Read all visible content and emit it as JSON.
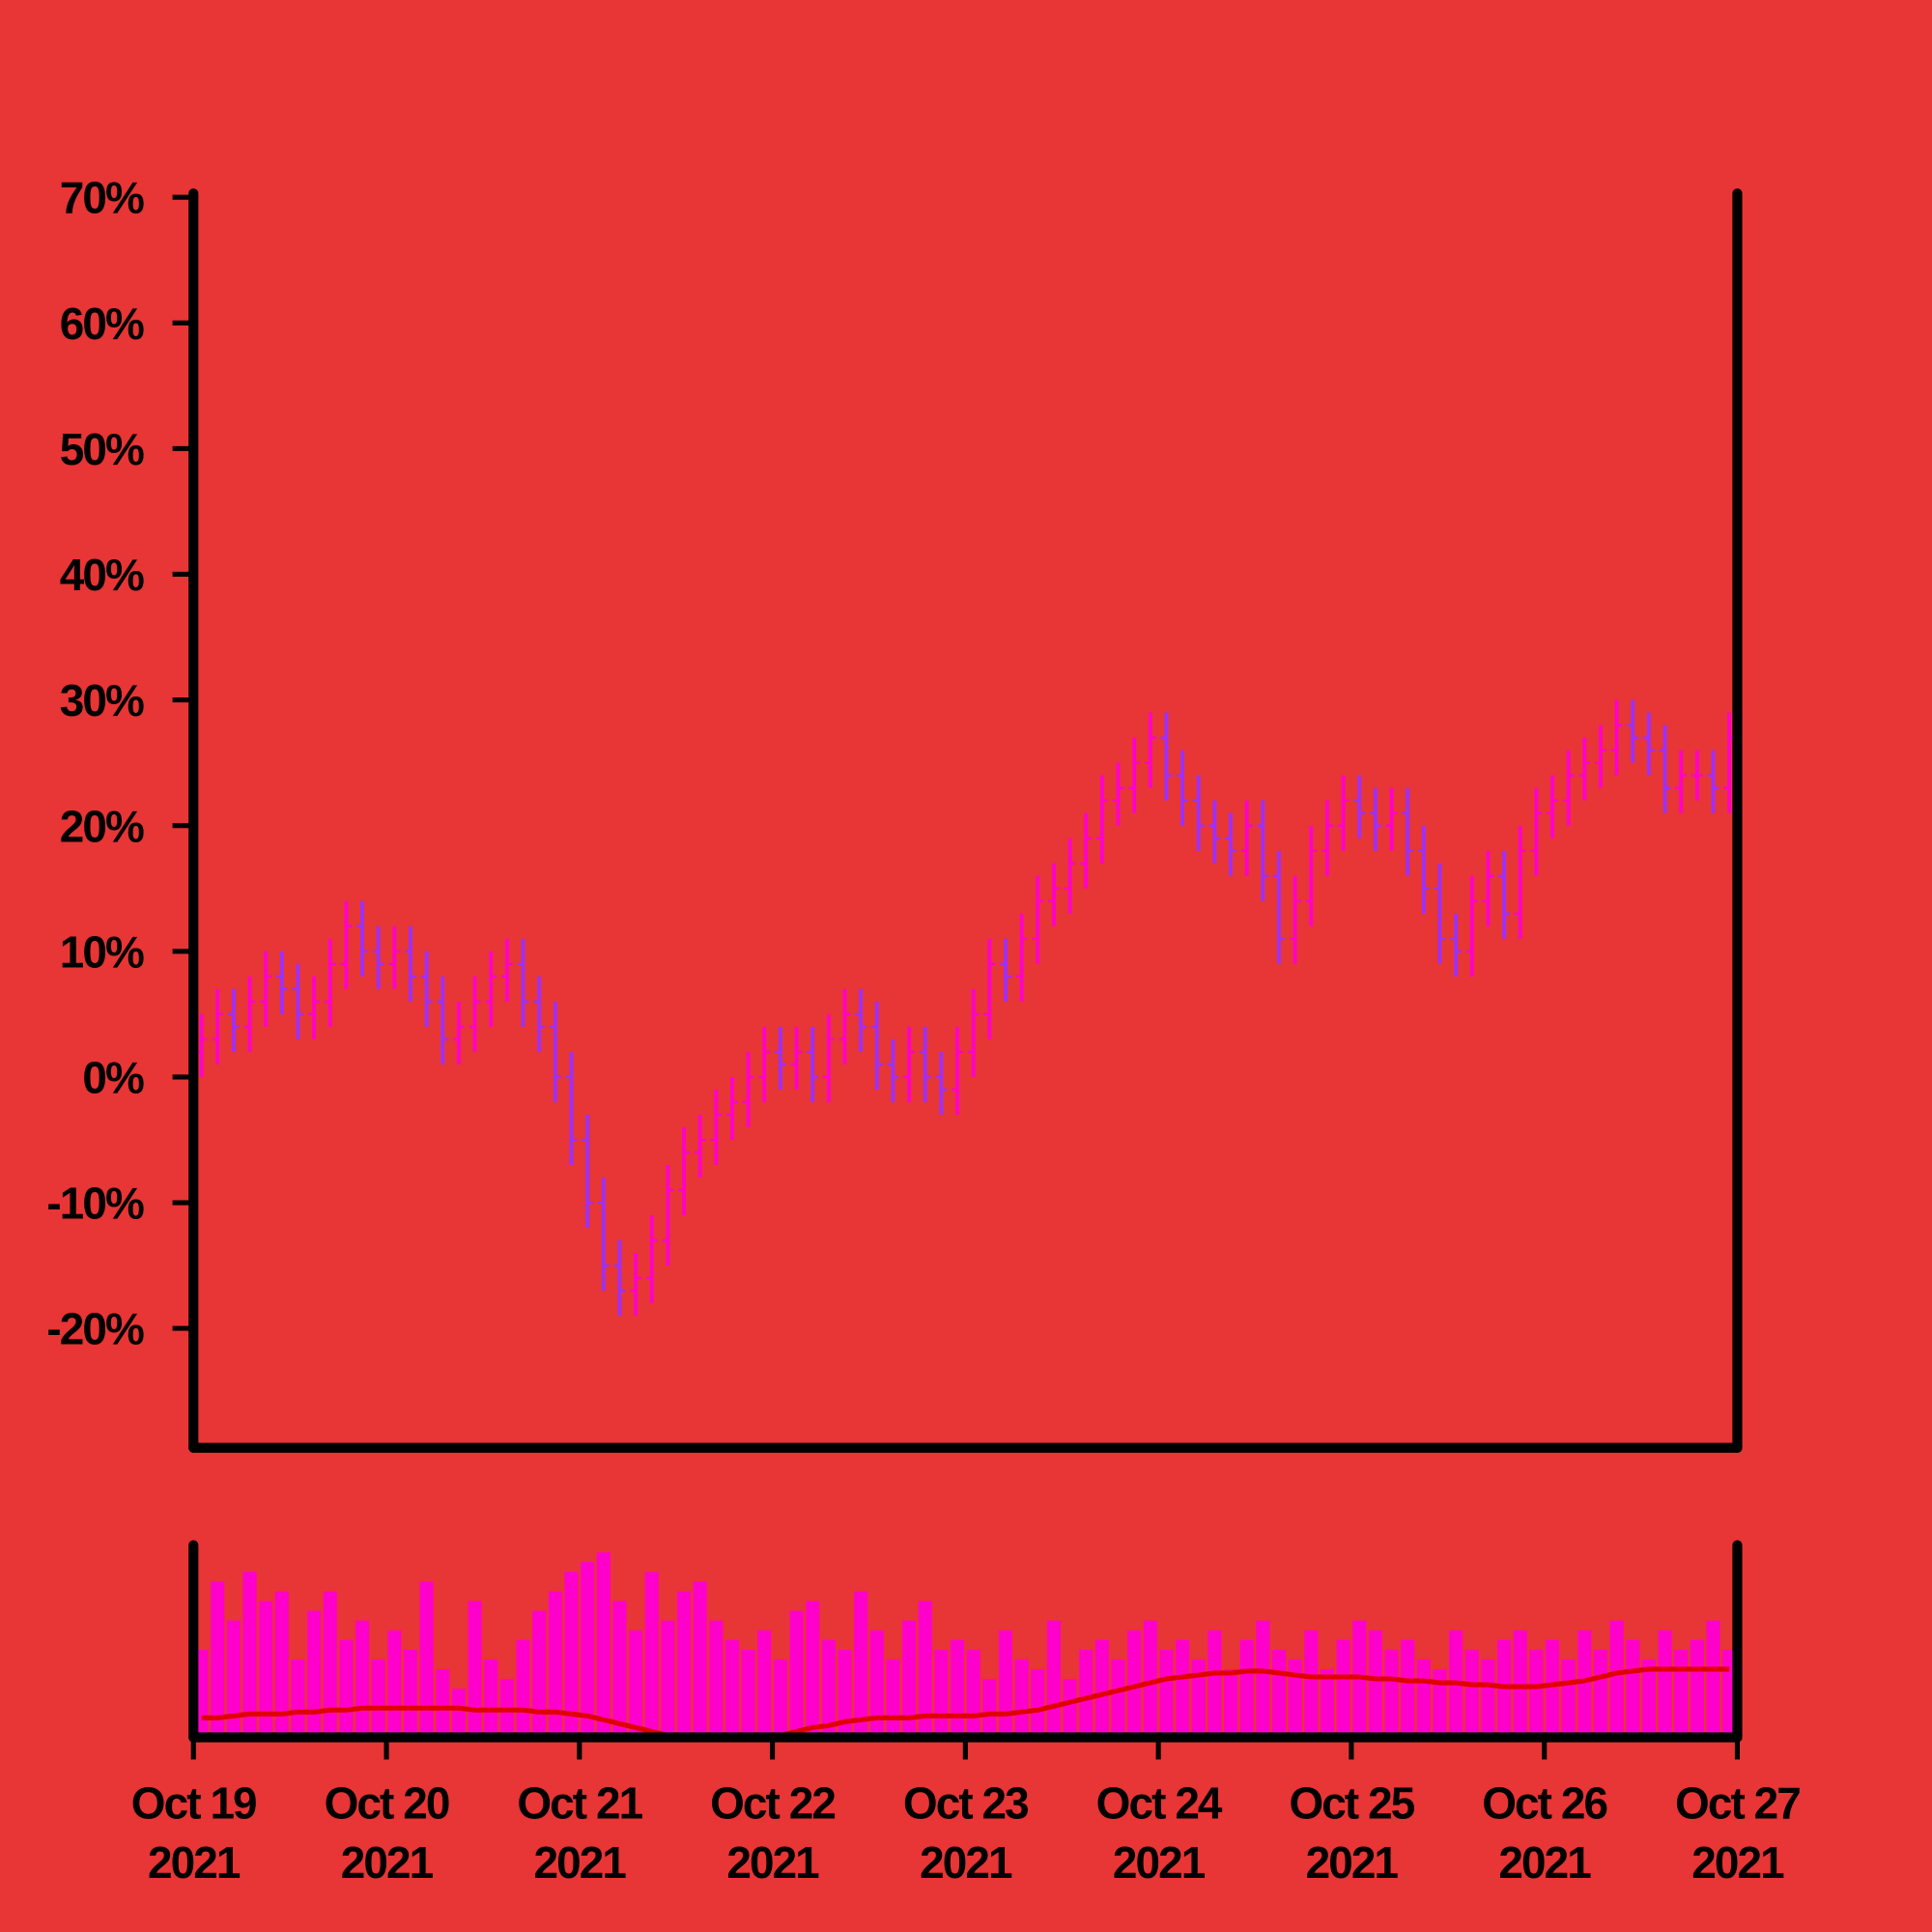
{
  "chart_data": {
    "type": "ohlc",
    "x": [
      "2021-10-19T00:00",
      "2021-10-19T02:00",
      "2021-10-19T04:00",
      "2021-10-19T06:00",
      "2021-10-19T08:00",
      "2021-10-19T10:00",
      "2021-10-19T12:00",
      "2021-10-19T14:00",
      "2021-10-19T16:00",
      "2021-10-19T18:00",
      "2021-10-19T20:00",
      "2021-10-19T22:00",
      "2021-10-20T00:00",
      "2021-10-20T02:00",
      "2021-10-20T04:00",
      "2021-10-20T06:00",
      "2021-10-20T08:00",
      "2021-10-20T10:00",
      "2021-10-20T12:00",
      "2021-10-20T14:00",
      "2021-10-20T16:00",
      "2021-10-20T18:00",
      "2021-10-20T20:00",
      "2021-10-20T22:00",
      "2021-10-21T00:00",
      "2021-10-21T02:00",
      "2021-10-21T04:00",
      "2021-10-21T06:00",
      "2021-10-21T08:00",
      "2021-10-21T10:00",
      "2021-10-21T12:00",
      "2021-10-21T14:00",
      "2021-10-21T16:00",
      "2021-10-21T18:00",
      "2021-10-21T20:00",
      "2021-10-21T22:00",
      "2021-10-22T00:00",
      "2021-10-22T02:00",
      "2021-10-22T04:00",
      "2021-10-22T06:00",
      "2021-10-22T08:00",
      "2021-10-22T10:00",
      "2021-10-22T12:00",
      "2021-10-22T14:00",
      "2021-10-22T16:00",
      "2021-10-22T18:00",
      "2021-10-22T20:00",
      "2021-10-22T22:00",
      "2021-10-23T00:00",
      "2021-10-23T02:00",
      "2021-10-23T04:00",
      "2021-10-23T06:00",
      "2021-10-23T08:00",
      "2021-10-23T10:00",
      "2021-10-23T12:00",
      "2021-10-23T14:00",
      "2021-10-23T16:00",
      "2021-10-23T18:00",
      "2021-10-23T20:00",
      "2021-10-23T22:00",
      "2021-10-24T00:00",
      "2021-10-24T02:00",
      "2021-10-24T04:00",
      "2021-10-24T06:00",
      "2021-10-24T08:00",
      "2021-10-24T10:00",
      "2021-10-24T12:00",
      "2021-10-24T14:00",
      "2021-10-24T16:00",
      "2021-10-24T18:00",
      "2021-10-24T20:00",
      "2021-10-24T22:00",
      "2021-10-25T00:00",
      "2021-10-25T02:00",
      "2021-10-25T04:00",
      "2021-10-25T06:00",
      "2021-10-25T08:00",
      "2021-10-25T10:00",
      "2021-10-25T12:00",
      "2021-10-25T14:00",
      "2021-10-25T16:00",
      "2021-10-25T18:00",
      "2021-10-25T20:00",
      "2021-10-25T22:00",
      "2021-10-26T00:00",
      "2021-10-26T02:00",
      "2021-10-26T04:00",
      "2021-10-26T06:00",
      "2021-10-26T08:00",
      "2021-10-26T10:00",
      "2021-10-26T12:00",
      "2021-10-26T14:00",
      "2021-10-26T16:00",
      "2021-10-26T18:00",
      "2021-10-26T20:00",
      "2021-10-26T22:00"
    ],
    "open": [
      2,
      3,
      5,
      4,
      6,
      8,
      7,
      5,
      6,
      9,
      12,
      10,
      9,
      10,
      8,
      6,
      3,
      4,
      6,
      8,
      9,
      6,
      4,
      0,
      -5,
      -10,
      -15,
      -17,
      -16,
      -13,
      -9,
      -6,
      -5,
      -3,
      -2,
      0,
      2,
      1,
      2,
      0,
      3,
      5,
      4,
      1,
      0,
      2,
      0,
      -1,
      2,
      5,
      9,
      8,
      11,
      14,
      15,
      17,
      19,
      22,
      23,
      25,
      27,
      24,
      22,
      20,
      19,
      18,
      20,
      16,
      11,
      14,
      18,
      20,
      22,
      21,
      20,
      21,
      18,
      15,
      11,
      10,
      14,
      16,
      13,
      18,
      21,
      22,
      24,
      25,
      26,
      28,
      27,
      26,
      23,
      24,
      24,
      23
    ],
    "high": [
      5,
      7,
      7,
      8,
      10,
      10,
      9,
      8,
      11,
      14,
      14,
      12,
      12,
      12,
      10,
      8,
      6,
      8,
      10,
      11,
      11,
      8,
      6,
      2,
      -3,
      -8,
      -13,
      -14,
      -11,
      -7,
      -4,
      -3,
      -1,
      0,
      2,
      4,
      4,
      4,
      4,
      5,
      7,
      7,
      6,
      3,
      4,
      4,
      2,
      4,
      7,
      11,
      11,
      13,
      16,
      17,
      19,
      21,
      24,
      25,
      27,
      29,
      29,
      26,
      24,
      22,
      21,
      22,
      22,
      18,
      16,
      20,
      22,
      24,
      24,
      23,
      23,
      23,
      20,
      17,
      13,
      16,
      18,
      18,
      20,
      23,
      24,
      26,
      27,
      28,
      30,
      30,
      29,
      28,
      26,
      26,
      26,
      29
    ],
    "low": [
      0,
      1,
      2,
      2,
      4,
      5,
      3,
      3,
      4,
      7,
      8,
      7,
      7,
      6,
      4,
      1,
      1,
      2,
      4,
      6,
      4,
      2,
      -2,
      -7,
      -12,
      -17,
      -19,
      -19,
      -18,
      -15,
      -11,
      -8,
      -7,
      -5,
      -4,
      -2,
      -1,
      -1,
      -2,
      -2,
      1,
      2,
      -1,
      -2,
      -2,
      -2,
      -3,
      -3,
      0,
      3,
      6,
      6,
      9,
      12,
      13,
      15,
      17,
      20,
      21,
      23,
      22,
      20,
      18,
      17,
      16,
      16,
      14,
      9,
      9,
      12,
      16,
      18,
      19,
      18,
      18,
      16,
      13,
      9,
      8,
      8,
      12,
      11,
      11,
      16,
      19,
      20,
      22,
      23,
      24,
      25,
      24,
      21,
      21,
      22,
      21,
      21
    ],
    "close": [
      3,
      5,
      4,
      6,
      8,
      7,
      5,
      6,
      9,
      12,
      10,
      9,
      10,
      8,
      6,
      3,
      4,
      6,
      8,
      9,
      6,
      4,
      0,
      -5,
      -10,
      -15,
      -17,
      -16,
      -13,
      -9,
      -6,
      -5,
      -3,
      -2,
      0,
      2,
      1,
      2,
      0,
      3,
      5,
      4,
      1,
      0,
      2,
      0,
      -1,
      2,
      5,
      9,
      8,
      11,
      14,
      15,
      17,
      19,
      22,
      23,
      25,
      27,
      24,
      22,
      20,
      19,
      18,
      20,
      16,
      11,
      14,
      18,
      20,
      22,
      21,
      20,
      21,
      18,
      15,
      11,
      10,
      14,
      16,
      13,
      18,
      21,
      22,
      24,
      25,
      26,
      28,
      27,
      26,
      23,
      24,
      24,
      23,
      27
    ],
    "up_color": "#ff00cc",
    "down_color": "#9b30ff",
    "xlim": [
      "2021-10-19T00:00",
      "2021-10-27T00:00"
    ],
    "xticks": [
      {
        "value": "2021-10-19T00:00",
        "label": [
          "Oct 19",
          "2021"
        ]
      },
      {
        "value": "2021-10-20T00:00",
        "label": [
          "Oct 20",
          "2021"
        ]
      },
      {
        "value": "2021-10-21T00:00",
        "label": [
          "Oct 21",
          "2021"
        ]
      },
      {
        "value": "2021-10-22T00:00",
        "label": [
          "Oct 22",
          "2021"
        ]
      },
      {
        "value": "2021-10-23T00:00",
        "label": [
          "Oct 23",
          "2021"
        ]
      },
      {
        "value": "2021-10-24T00:00",
        "label": [
          "Oct 24",
          "2021"
        ]
      },
      {
        "value": "2021-10-25T00:00",
        "label": [
          "Oct 25",
          "2021"
        ]
      },
      {
        "value": "2021-10-26T00:00",
        "label": [
          "Oct 26",
          "2021"
        ]
      },
      {
        "value": "2021-10-27T00:00",
        "label": [
          "Oct 27",
          "2021"
        ]
      }
    ],
    "ylim": [
      -29.5,
      70.3
    ],
    "yticks": [
      {
        "value": -20,
        "label": "-20%"
      },
      {
        "value": -10,
        "label": "-10%"
      },
      {
        "value": 0,
        "label": "0%"
      },
      {
        "value": 10,
        "label": "10%"
      },
      {
        "value": 20,
        "label": "20%"
      },
      {
        "value": 30,
        "label": "30%"
      },
      {
        "value": 40,
        "label": "40%"
      },
      {
        "value": 50,
        "label": "50%"
      },
      {
        "value": 60,
        "label": "60%"
      },
      {
        "value": 70,
        "label": "70%"
      }
    ],
    "volume": {
      "color": "#ff00cc",
      "ma_color": "#e00000",
      "ylim": [
        0,
        100
      ],
      "values": [
        45,
        80,
        60,
        85,
        70,
        75,
        40,
        65,
        75,
        50,
        60,
        40,
        55,
        45,
        80,
        35,
        25,
        70,
        40,
        30,
        50,
        65,
        75,
        85,
        90,
        95,
        70,
        55,
        85,
        60,
        75,
        80,
        60,
        50,
        45,
        55,
        40,
        65,
        70,
        50,
        45,
        75,
        55,
        40,
        60,
        70,
        45,
        50,
        45,
        30,
        55,
        40,
        35,
        60,
        30,
        45,
        50,
        40,
        55,
        60,
        45,
        50,
        40,
        55,
        35,
        50,
        60,
        45,
        40,
        55,
        35,
        50,
        60,
        55,
        45,
        50,
        40,
        35,
        55,
        45,
        40,
        50,
        55,
        45,
        50,
        40,
        55,
        45,
        60,
        50,
        40,
        55,
        45,
        50,
        60,
        45
      ],
      "ma": [
        10,
        10,
        11,
        12,
        12,
        12,
        13,
        13,
        14,
        14,
        15,
        15,
        15,
        15,
        15,
        15,
        15,
        14,
        14,
        14,
        14,
        13,
        13,
        12,
        11,
        9,
        7,
        5,
        3,
        1,
        0,
        0,
        0,
        0,
        0,
        0,
        1,
        3,
        5,
        6,
        8,
        9,
        10,
        10,
        10,
        11,
        11,
        11,
        11,
        12,
        12,
        13,
        14,
        16,
        18,
        20,
        22,
        24,
        26,
        28,
        30,
        31,
        32,
        33,
        33,
        34,
        34,
        33,
        32,
        31,
        31,
        31,
        31,
        30,
        30,
        29,
        29,
        28,
        28,
        27,
        27,
        26,
        26,
        26,
        27,
        28,
        29,
        31,
        33,
        34,
        35,
        35,
        35,
        35,
        35,
        35
      ]
    }
  }
}
